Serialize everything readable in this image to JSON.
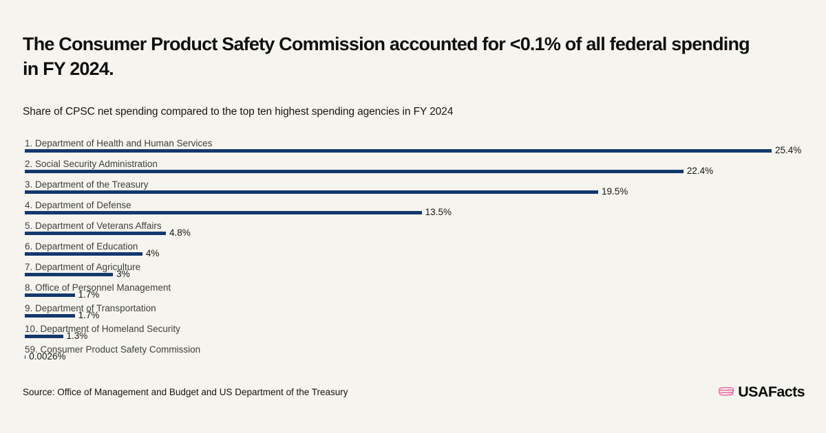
{
  "colors": {
    "background": "#F5F4EE",
    "bar": "#13386E",
    "brand_pink": "#EE4D9B",
    "title_text": "#101010",
    "label_text": "#3E3E3E",
    "value_text": "#161616"
  },
  "header": {
    "title": "The Consumer Product Safety Commission accounted for <0.1% of all federal spending in FY 2024.",
    "subtitle": "Share of CPSC net spending compared to the top ten highest spending agencies in FY 2024"
  },
  "chart_data": {
    "type": "bar",
    "orientation": "horizontal",
    "title": "Share of CPSC net spending compared to the top ten highest spending agencies in FY 2024",
    "categories": [
      "1. Department of Health and Human Services",
      "2. Social Security Administration",
      "3. Department of the Treasury",
      "4. Department of Defense",
      "5. Department of Veterans Affairs",
      "6. Department of Education",
      "7. Department of Agriculture",
      "8. Office of Personnel Management",
      "9. Department of Transportation",
      "10. Department of Homeland Security",
      "59. Consumer Product Safety Commission"
    ],
    "values": [
      25.4,
      22.4,
      19.5,
      13.5,
      4.8,
      4,
      3,
      1.7,
      1.7,
      1.3,
      0.0026
    ],
    "value_labels": [
      "25.4%",
      "22.4%",
      "19.5%",
      "13.5%",
      "4.8%",
      "4%",
      "3%",
      "1.7%",
      "1.7%",
      "1.3%",
      "0.0026%"
    ],
    "unit": "%",
    "xlim": [
      0,
      25.4
    ],
    "grid": false,
    "legend": false
  },
  "footer": {
    "source": "Source: Office of Management and Budget and US Department of the Treasury",
    "brand_wordmark": "USAFacts"
  }
}
